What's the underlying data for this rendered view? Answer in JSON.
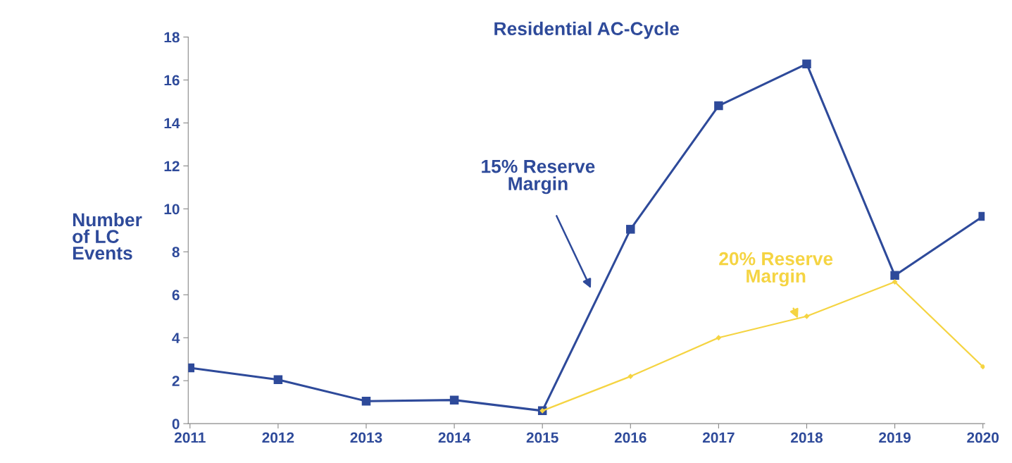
{
  "chart_data": {
    "type": "line",
    "title": "Residential AC-Cycle",
    "ylabel": "Number\nof LC\nEvents",
    "categories": [
      "2011",
      "2012",
      "2013",
      "2014",
      "2015",
      "2016",
      "2017",
      "2018",
      "2019",
      "2020"
    ],
    "series": [
      {
        "color": "#2e4a9a",
        "marker": "square",
        "values": [
          2.6,
          2.05,
          1.05,
          1.1,
          0.6,
          9.05,
          14.8,
          16.75,
          6.9,
          9.65
        ]
      },
      {
        "color": "#f5d442",
        "marker": "diamond",
        "values": [
          null,
          null,
          null,
          null,
          0.6,
          2.2,
          4.0,
          5.0,
          6.6,
          2.65
        ]
      }
    ],
    "annotations": [
      "15% Reserve\nMargin",
      "20% Reserve\nMargin"
    ],
    "ylim": [
      0,
      18
    ],
    "yticks": [
      0,
      2,
      4,
      6,
      8,
      10,
      12,
      14,
      16,
      18
    ],
    "grid": false,
    "legend": false,
    "line_style": "solid"
  }
}
